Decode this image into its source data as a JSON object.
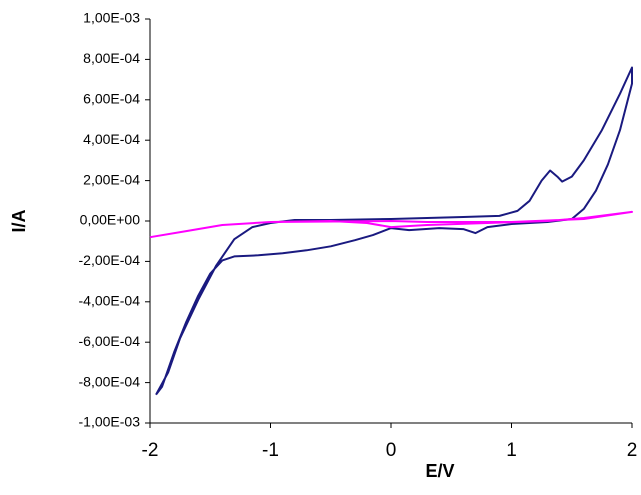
{
  "chart_data": {
    "type": "line",
    "xlabel": "E/V",
    "ylabel": "I/A",
    "xlim": [
      -2,
      2
    ],
    "xticks": [
      -2,
      -1,
      0,
      1,
      2
    ],
    "ylim": [
      -0.001,
      0.001
    ],
    "yticks": [
      {
        "value": -0.001,
        "label": "-1,00E-03"
      },
      {
        "value": -0.0008,
        "label": "-8,00E-04"
      },
      {
        "value": -0.0006,
        "label": "-6,00E-04"
      },
      {
        "value": -0.0004,
        "label": "-4,00E-04"
      },
      {
        "value": -0.0002,
        "label": "-2,00E-04"
      },
      {
        "value": 0,
        "label": "0,00E+00"
      },
      {
        "value": 0.0002,
        "label": "2,00E-04"
      },
      {
        "value": 0.0004,
        "label": "4,00E-04"
      },
      {
        "value": 0.0006,
        "label": "6,00E-04"
      },
      {
        "value": 0.0008,
        "label": "8,00E-04"
      },
      {
        "value": 0.001,
        "label": "1,00E-03"
      }
    ],
    "grid": false,
    "series": [
      {
        "color": "#1a1a80",
        "x": [
          -1.95,
          -1.9,
          -1.8,
          -1.7,
          -1.6,
          -1.5,
          -1.4,
          -1.3,
          -1.1,
          -0.9,
          -0.7,
          -0.5,
          -0.3,
          -0.15,
          0,
          0.15,
          0.4,
          0.6,
          0.7,
          0.8,
          1.0,
          1.3,
          1.5,
          1.6,
          1.7,
          1.8,
          1.9,
          2.0,
          2.0,
          1.9,
          1.75,
          1.6,
          1.5,
          1.42,
          1.38,
          1.32,
          1.25,
          1.15,
          1.05,
          0.9,
          0.6,
          0.3,
          0,
          -0.5,
          -0.8,
          -1.0,
          -1.15,
          -1.3,
          -1.45,
          -1.6,
          -1.75,
          -1.85,
          -1.95
        ],
        "values": [
          -0.00086,
          -0.00082,
          -0.00065,
          -0.0005,
          -0.00037,
          -0.00026,
          -0.000195,
          -0.000175,
          -0.00017,
          -0.00016,
          -0.000145,
          -0.000125,
          -9.5e-05,
          -7e-05,
          -3.5e-05,
          -4.5e-05,
          -3.5e-05,
          -4e-05,
          -6e-05,
          -3e-05,
          -1.5e-05,
          -5e-06,
          1e-05,
          6e-05,
          0.00015,
          0.00028,
          0.00045,
          0.00068,
          0.00076,
          0.00063,
          0.00045,
          0.0003,
          0.00022,
          0.000195,
          0.00022,
          0.00025,
          0.0002,
          0.0001,
          5e-05,
          2.5e-05,
          2e-05,
          1.5e-05,
          1e-05,
          5e-06,
          5e-06,
          -1e-05,
          -3e-05,
          -9e-05,
          -0.00022,
          -0.00039,
          -0.00058,
          -0.00075,
          -0.00086
        ]
      },
      {
        "color": "#ff00ff",
        "x": [
          -2,
          -1.7,
          -1.4,
          -1.0,
          -0.5,
          -0.2,
          0,
          0.3,
          0.8,
          1.3,
          1.6,
          2,
          1.6,
          1.0,
          0.3,
          0,
          -1
        ],
        "values": [
          -8e-05,
          -5e-05,
          -2e-05,
          -5e-06,
          0,
          -1e-05,
          -3e-05,
          -2e-05,
          -1e-05,
          0,
          1.5e-05,
          4.5e-05,
          1e-05,
          -5e-06,
          -5e-06,
          0,
          -5e-06
        ]
      }
    ]
  }
}
